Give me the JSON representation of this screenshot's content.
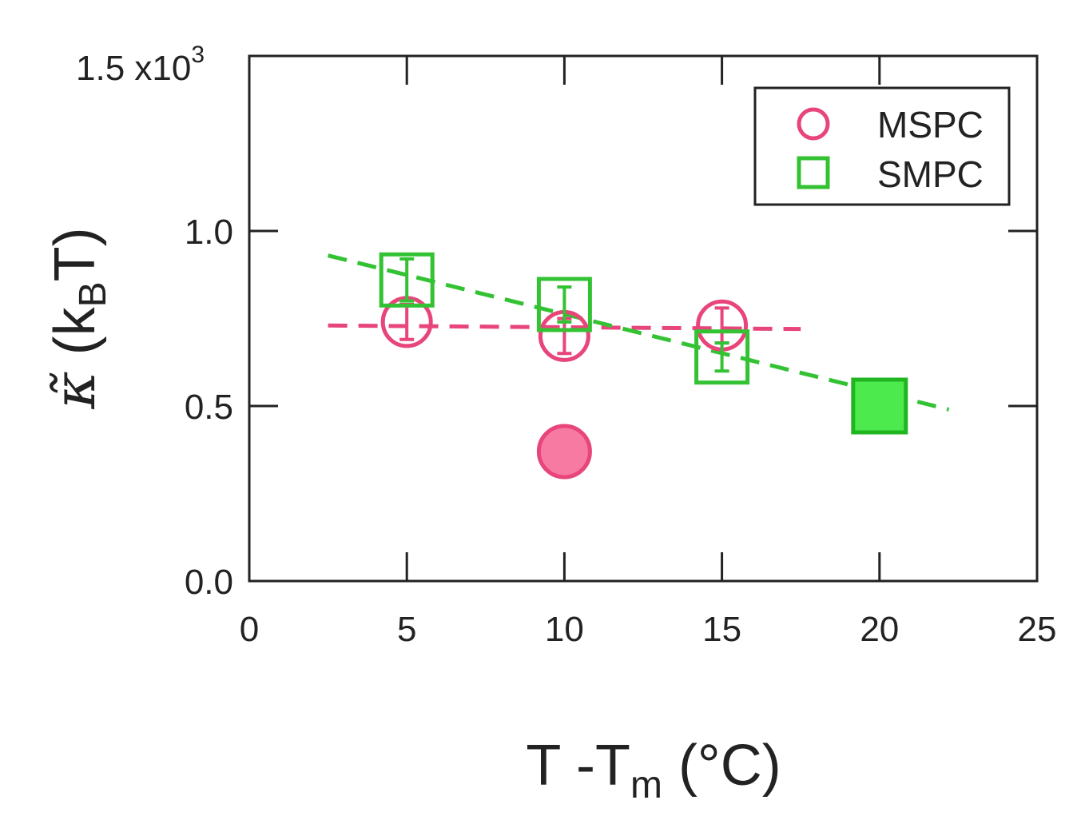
{
  "chart_data": {
    "type": "scatter",
    "title": "",
    "xlabel": {
      "main": "T -T",
      "sub": "m",
      "unit": " (°C)"
    },
    "ylabel": {
      "symbol": "κ̃",
      "prefix": " (k",
      "sub": "B",
      "suffix": "T)"
    },
    "y_multiplier": "1.5 x10",
    "y_multiplier_exp": "3",
    "xlim": [
      0,
      25
    ],
    "ylim": [
      0,
      1.5
    ],
    "x_ticks": [
      0,
      5,
      10,
      15,
      20,
      25
    ],
    "x_tick_labels": [
      "0",
      "5",
      "10",
      "15",
      "20",
      "25"
    ],
    "y_ticks": [
      0.0,
      0.5,
      1.0
    ],
    "y_tick_labels": [
      "0.0",
      "0.5",
      "1.0"
    ],
    "grid": false,
    "legend_position": "top-right",
    "series": [
      {
        "name": "MSPC",
        "marker": "circle-open",
        "color": "#e8457b",
        "points": [
          {
            "x": 5,
            "y": 0.74,
            "err": 0.05
          },
          {
            "x": 10,
            "y": 0.7,
            "err": 0.05
          },
          {
            "x": 15,
            "y": 0.73,
            "err": 0.05
          }
        ]
      },
      {
        "name": "SMPC",
        "marker": "square-open",
        "color": "#33c233",
        "points": [
          {
            "x": 5,
            "y": 0.86,
            "err": 0.06
          },
          {
            "x": 10,
            "y": 0.79,
            "err": 0.05
          },
          {
            "x": 15,
            "y": 0.64,
            "err": 0.04
          }
        ]
      }
    ],
    "extra_points": [
      {
        "name": "MSPC-filled",
        "marker": "circle-filled",
        "x": 10,
        "y": 0.37,
        "color": "#e8457b",
        "fill": "#f77aa2"
      },
      {
        "name": "SMPC-filled",
        "marker": "square-filled",
        "x": 20,
        "y": 0.5,
        "color": "#22b522",
        "fill": "#4cea4c"
      }
    ],
    "fit_lines": [
      {
        "name": "MSPC-fit",
        "color": "#e8457b",
        "x": [
          2.5,
          17.5
        ],
        "y": [
          0.73,
          0.72
        ]
      },
      {
        "name": "SMPC-fit",
        "color": "#33c233",
        "x": [
          2.5,
          22.2
        ],
        "y": [
          0.93,
          0.49
        ]
      }
    ]
  }
}
